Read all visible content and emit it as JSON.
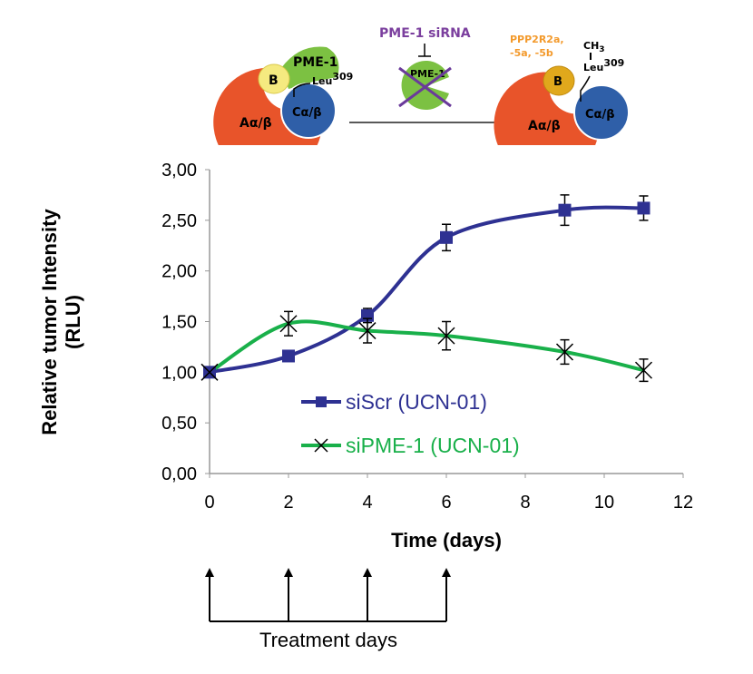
{
  "diagram": {
    "left_complex": {
      "b_label": "B",
      "pme_label": "PME-1",
      "leu_label": "Leu",
      "leu_sup": "309",
      "c_label": "Cα/β",
      "a_label": "Aα/β"
    },
    "middle": {
      "sirna_label": "PME-1 siRNA",
      "pme_label": "PME-1"
    },
    "right_complex": {
      "b_label": "B",
      "ppp_line1": "PPP2R2a,",
      "ppp_line2": "-5a, -5b",
      "ch3_label": "CH",
      "ch3_sub": "3",
      "leu_label": "Leu",
      "leu_sup": "309",
      "c_label": "Cα/β",
      "a_label": "Aα/β"
    },
    "colors": {
      "sirna": "#7b3f9e",
      "ppp": "#f39a2c",
      "orange": "#e8542a",
      "green": "#7cc142",
      "blue": "#2f5fa8",
      "yellow": "#f5ea80",
      "gold": "#e0a81c"
    }
  },
  "treatment_label": "Treatment days",
  "chart_data": {
    "type": "line",
    "xlabel": "Time (days)",
    "ylabel_line1": "Relative tumor Intensity",
    "ylabel_line2": "(RLU)",
    "xlim": [
      0,
      12
    ],
    "ylim": [
      0,
      3
    ],
    "xticks": [
      0,
      2,
      4,
      6,
      8,
      10,
      12
    ],
    "xtick_labels": [
      "0",
      "2",
      "4",
      "6",
      "8",
      "10",
      "12"
    ],
    "yticks": [
      0,
      0.5,
      1,
      1.5,
      2,
      2.5,
      3
    ],
    "ytick_labels": [
      "0,00",
      "0,50",
      "1,00",
      "1,50",
      "2,00",
      "2,50",
      "3,00"
    ],
    "grid": false,
    "legend_position": "center",
    "treatment_days": [
      0,
      2,
      4,
      6
    ],
    "series": [
      {
        "name": "siScr (UCN-01)",
        "color": "#2e3192",
        "marker": "square",
        "x": [
          0,
          2,
          4,
          6,
          9,
          11
        ],
        "y": [
          1.0,
          1.16,
          1.56,
          2.33,
          2.6,
          2.62
        ],
        "err": [
          0,
          0.05,
          0.07,
          0.13,
          0.15,
          0.12
        ]
      },
      {
        "name": "siPME-1 (UCN-01)",
        "color": "#19b04a",
        "marker": "x",
        "x": [
          0,
          2,
          4,
          6,
          9,
          11
        ],
        "y": [
          1.0,
          1.48,
          1.41,
          1.36,
          1.2,
          1.02
        ],
        "err": [
          0,
          0.12,
          0.12,
          0.14,
          0.12,
          0.11
        ]
      }
    ]
  }
}
